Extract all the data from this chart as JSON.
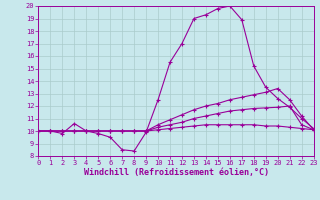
{
  "xlabel": "Windchill (Refroidissement éolien,°C)",
  "background_color": "#c8e8ec",
  "line_color": "#990099",
  "line1_x": [
    0,
    1,
    2,
    3,
    4,
    5,
    6,
    7,
    8,
    9,
    10,
    11,
    12,
    13,
    14,
    15,
    16,
    17,
    18,
    19,
    20,
    21,
    22,
    23
  ],
  "line1_y": [
    10,
    10,
    9.8,
    10.6,
    10.0,
    9.8,
    9.5,
    8.5,
    8.4,
    9.9,
    12.5,
    15.5,
    17.0,
    19.0,
    19.3,
    19.8,
    20.0,
    18.9,
    15.2,
    13.5,
    12.6,
    11.9,
    11.0,
    10.2
  ],
  "line2_x": [
    0,
    1,
    2,
    3,
    4,
    5,
    6,
    7,
    8,
    9,
    10,
    11,
    12,
    13,
    14,
    15,
    16,
    17,
    18,
    19,
    20,
    21,
    22,
    23
  ],
  "line2_y": [
    10,
    10,
    10,
    10,
    10,
    10,
    10,
    10,
    10,
    10,
    10.3,
    10.5,
    10.7,
    11.0,
    11.2,
    11.4,
    11.6,
    11.7,
    11.8,
    11.85,
    11.9,
    12.0,
    10.5,
    10.1
  ],
  "line3_x": [
    0,
    1,
    2,
    3,
    4,
    5,
    6,
    7,
    8,
    9,
    10,
    11,
    12,
    13,
    14,
    15,
    16,
    17,
    18,
    19,
    20,
    21,
    22,
    23
  ],
  "line3_y": [
    10,
    10,
    10,
    10,
    10,
    10,
    10,
    10,
    10,
    10,
    10.5,
    10.9,
    11.3,
    11.7,
    12.0,
    12.2,
    12.5,
    12.7,
    12.9,
    13.1,
    13.4,
    12.5,
    11.2,
    10.1
  ],
  "line4_x": [
    0,
    1,
    2,
    3,
    4,
    5,
    6,
    7,
    8,
    9,
    10,
    11,
    12,
    13,
    14,
    15,
    16,
    17,
    18,
    19,
    20,
    21,
    22,
    23
  ],
  "line4_y": [
    10,
    10,
    10,
    10,
    10,
    10,
    10,
    10,
    10,
    10,
    10.1,
    10.2,
    10.3,
    10.4,
    10.5,
    10.5,
    10.5,
    10.5,
    10.5,
    10.4,
    10.4,
    10.3,
    10.2,
    10.1
  ],
  "ylim": [
    8,
    20
  ],
  "xlim": [
    0,
    23
  ],
  "yticks": [
    8,
    9,
    10,
    11,
    12,
    13,
    14,
    15,
    16,
    17,
    18,
    19,
    20
  ],
  "xticks": [
    0,
    1,
    2,
    3,
    4,
    5,
    6,
    7,
    8,
    9,
    10,
    11,
    12,
    13,
    14,
    15,
    16,
    17,
    18,
    19,
    20,
    21,
    22,
    23
  ],
  "grid_color": "#aacccc",
  "marker": "+",
  "tick_fontsize": 5,
  "xlabel_fontsize": 6
}
